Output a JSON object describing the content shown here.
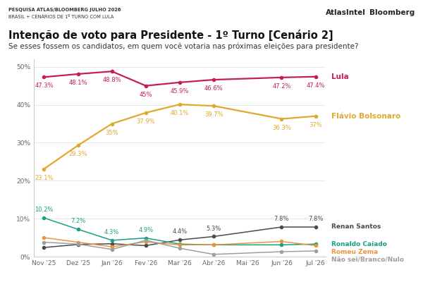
{
  "header": {
    "source": "PESQUISA ATLAS/BLOOMBERG JULHO 2026",
    "scope": "BRASIL + CENÁRIOS DE 1º TURNO COM LULA",
    "logos": [
      "AtlasIntel",
      "Bloomberg"
    ]
  },
  "chart_data": {
    "type": "line",
    "title": "Intenção de voto para Presidente - 1º Turno [Cenário 2]",
    "subtitle": "Se esses fossem os candidatos, em quem você votaria nas próximas eleições para presidente?",
    "categories": [
      "Nov '25",
      "Dez '25",
      "Jan '26",
      "Fev '26",
      "Mar '26",
      "Abr '26",
      "Mai '26",
      "Jun '26",
      "Jul '26"
    ],
    "ylim": [
      0,
      52
    ],
    "yticks": [
      {
        "value": 0,
        "label": "0%"
      },
      {
        "value": 10,
        "label": "10%"
      },
      {
        "value": 20,
        "label": "20%"
      },
      {
        "value": 30,
        "label": "30%"
      },
      {
        "value": 40,
        "label": "40%"
      },
      {
        "value": 50,
        "label": "50%"
      }
    ],
    "grid": true,
    "data_labels": true,
    "marker": "o",
    "line_style": "solid",
    "series": [
      {
        "name": "Lula",
        "color": "#c41e5a",
        "values": [
          47.3,
          48.1,
          48.8,
          45,
          45.9,
          46.6,
          null,
          47.2,
          47.4
        ],
        "value_labels": [
          "47.3%",
          "48.1%",
          "48.8%",
          "45%",
          "45.9%",
          "46.6%",
          null,
          "47.2%",
          "47.4%"
        ]
      },
      {
        "name": "Flávio Bolsonaro",
        "color": "#e0a82e",
        "values": [
          23.1,
          29.3,
          35,
          37.9,
          40.1,
          39.7,
          null,
          36.3,
          37
        ],
        "value_labels": [
          "23.1%",
          "29.3%",
          "35%",
          "37.9%",
          "40.1%",
          "39.7%",
          null,
          "36.3%",
          "37%"
        ]
      },
      {
        "name": "Renan Santos",
        "color": "#4a4a4a",
        "values": [
          2.4,
          3.2,
          3.4,
          2.9,
          4.4,
          5.3,
          null,
          7.8,
          7.8
        ],
        "value_labels": [
          null,
          null,
          null,
          null,
          "4.4%",
          "5.3%",
          null,
          "7.8%",
          "7.8%"
        ]
      },
      {
        "name": "Ronaldo Caiado",
        "color": "#17a085",
        "values": [
          10.2,
          7.2,
          4.3,
          4.9,
          3.3,
          3.1,
          null,
          3.1,
          3.3
        ],
        "value_labels": [
          "10.2%",
          "7.2%",
          "4.3%",
          "4.9%",
          null,
          null,
          null,
          null,
          null
        ]
      },
      {
        "name": "Romeu Zema",
        "color": "#e8953a",
        "values": [
          5,
          3.8,
          2.6,
          3.9,
          3.1,
          3.1,
          null,
          4,
          2.9
        ],
        "value_labels": [
          null,
          null,
          null,
          null,
          null,
          null,
          null,
          null,
          null
        ]
      },
      {
        "name": "Não sei/Branco/Nulo",
        "color": "#9e9e9e",
        "values": [
          3.8,
          3.3,
          1.9,
          4.3,
          2.2,
          0.6,
          null,
          1.3,
          1.5
        ],
        "value_labels": [
          null,
          null,
          null,
          null,
          null,
          null,
          null,
          null,
          null
        ]
      }
    ]
  }
}
